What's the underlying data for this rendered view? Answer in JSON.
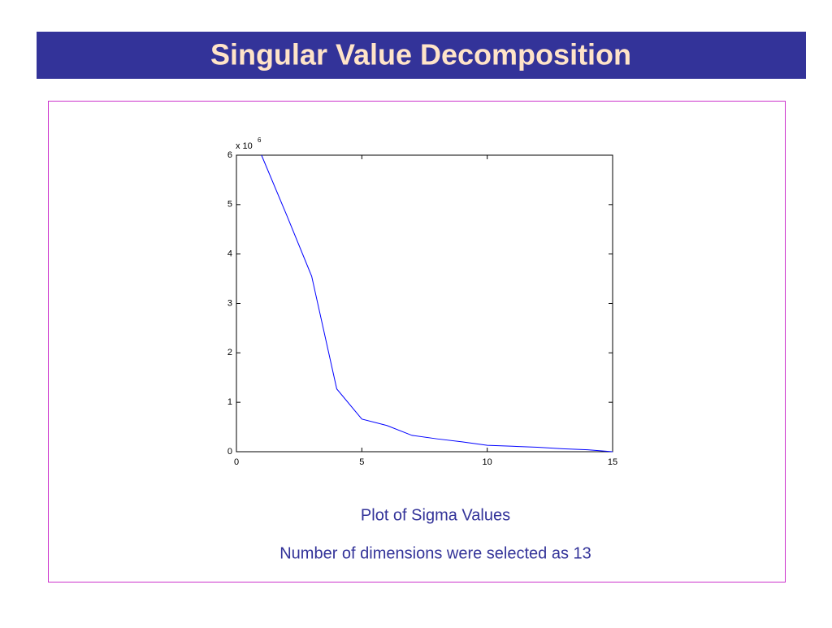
{
  "title": "Singular Value Decomposition",
  "chart_data": {
    "type": "line",
    "x": [
      1,
      2,
      3,
      4,
      5,
      6,
      7,
      8,
      9,
      10,
      11,
      12,
      13,
      14,
      15
    ],
    "values": [
      6.0,
      4.79,
      3.55,
      1.27,
      0.66,
      0.53,
      0.33,
      0.26,
      0.2,
      0.13,
      0.11,
      0.09,
      0.06,
      0.04,
      0.0
    ],
    "color": "#0000ff",
    "xlim": [
      0,
      15
    ],
    "ylim": [
      0,
      6
    ],
    "xticks": [
      0,
      5,
      10,
      15
    ],
    "yticks": [
      0,
      1,
      2,
      3,
      4,
      5,
      6
    ],
    "y_multiplier": {
      "base": "x 10",
      "exponent": "6"
    }
  },
  "captions": [
    "Plot of Sigma Values",
    "Number of dimensions were selected as 13"
  ]
}
